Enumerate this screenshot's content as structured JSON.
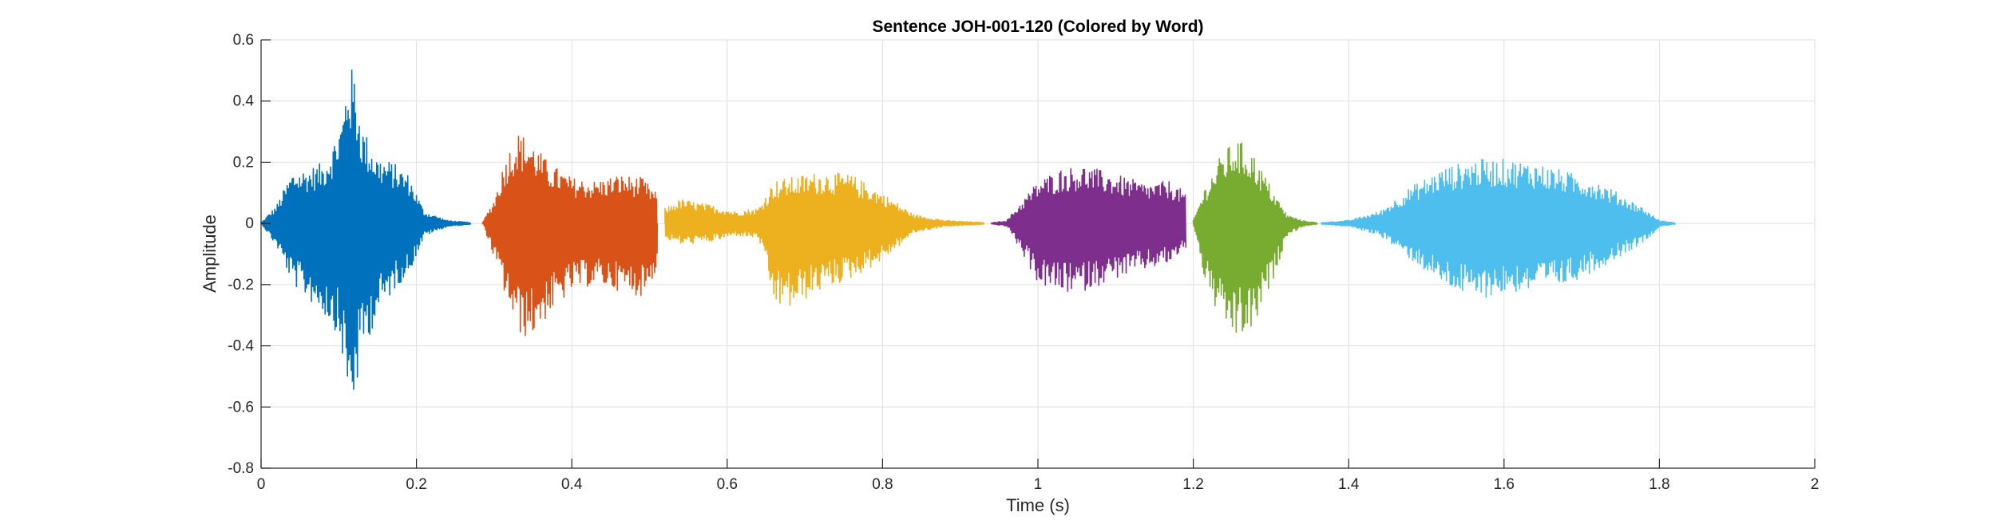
{
  "chart_data": {
    "type": "line",
    "title": "Sentence JOH-001-120 (Colored by Word)",
    "xlabel": "Time (s)",
    "ylabel": "Amplitude",
    "xlim": [
      0,
      2
    ],
    "ylim": [
      -0.8,
      0.6
    ],
    "xticks": [
      0,
      0.2,
      0.4,
      0.6,
      0.8,
      1,
      1.2,
      1.4,
      1.6,
      1.8,
      2
    ],
    "xtick_labels": [
      "0",
      "0.2",
      "0.4",
      "0.6",
      "0.8",
      "1",
      "1.2",
      "1.4",
      "1.6",
      "1.8",
      "2"
    ],
    "yticks": [
      -0.8,
      -0.6,
      -0.4,
      -0.2,
      0,
      0.2,
      0.4,
      0.6
    ],
    "ytick_labels": [
      "-0.8",
      "-0.6",
      "-0.4",
      "-0.2",
      "0",
      "0.2",
      "0.4",
      "0.6"
    ],
    "grid": true,
    "legend": "none",
    "series": [
      {
        "color": "#0072BD",
        "start": 0.0,
        "end": 0.27,
        "envelope": [
          [
            0.0,
            0.002,
            -0.002
          ],
          [
            0.02,
            0.06,
            -0.08
          ],
          [
            0.04,
            0.17,
            -0.2
          ],
          [
            0.06,
            0.18,
            -0.25
          ],
          [
            0.08,
            0.2,
            -0.3
          ],
          [
            0.095,
            0.28,
            -0.35
          ],
          [
            0.105,
            0.36,
            -0.45
          ],
          [
            0.112,
            0.52,
            -0.62
          ],
          [
            0.12,
            0.5,
            -0.58
          ],
          [
            0.13,
            0.32,
            -0.42
          ],
          [
            0.15,
            0.22,
            -0.3
          ],
          [
            0.17,
            0.2,
            -0.22
          ],
          [
            0.19,
            0.16,
            -0.16
          ],
          [
            0.21,
            0.04,
            -0.04
          ],
          [
            0.24,
            0.01,
            -0.01
          ],
          [
            0.27,
            0.003,
            -0.003
          ]
        ]
      },
      {
        "color": "#D95319",
        "start": 0.285,
        "end": 0.51,
        "envelope": [
          [
            0.285,
            0.003,
            -0.003
          ],
          [
            0.3,
            0.08,
            -0.12
          ],
          [
            0.315,
            0.22,
            -0.25
          ],
          [
            0.33,
            0.3,
            -0.36
          ],
          [
            0.345,
            0.28,
            -0.38
          ],
          [
            0.37,
            0.2,
            -0.3
          ],
          [
            0.4,
            0.15,
            -0.22
          ],
          [
            0.43,
            0.14,
            -0.2
          ],
          [
            0.46,
            0.16,
            -0.22
          ],
          [
            0.49,
            0.15,
            -0.24
          ],
          [
            0.51,
            0.1,
            -0.15
          ]
        ]
      },
      {
        "color": "#EDB120",
        "start": 0.52,
        "end": 0.93,
        "envelope": [
          [
            0.52,
            0.05,
            -0.05
          ],
          [
            0.54,
            0.08,
            -0.07
          ],
          [
            0.58,
            0.06,
            -0.06
          ],
          [
            0.61,
            0.04,
            -0.04
          ],
          [
            0.64,
            0.05,
            -0.05
          ],
          [
            0.66,
            0.14,
            -0.27
          ],
          [
            0.68,
            0.15,
            -0.28
          ],
          [
            0.72,
            0.17,
            -0.22
          ],
          [
            0.76,
            0.16,
            -0.18
          ],
          [
            0.8,
            0.1,
            -0.12
          ],
          [
            0.84,
            0.03,
            -0.03
          ],
          [
            0.88,
            0.01,
            -0.01
          ],
          [
            0.93,
            0.003,
            -0.003
          ]
        ]
      },
      {
        "color": "#7E2F8E",
        "start": 0.94,
        "end": 1.19,
        "envelope": [
          [
            0.94,
            0.002,
            -0.002
          ],
          [
            0.96,
            0.01,
            -0.01
          ],
          [
            0.975,
            0.06,
            -0.08
          ],
          [
            1.0,
            0.14,
            -0.2
          ],
          [
            1.03,
            0.18,
            -0.23
          ],
          [
            1.06,
            0.19,
            -0.22
          ],
          [
            1.1,
            0.16,
            -0.18
          ],
          [
            1.14,
            0.13,
            -0.15
          ],
          [
            1.17,
            0.14,
            -0.13
          ],
          [
            1.19,
            0.1,
            -0.08
          ]
        ]
      },
      {
        "color": "#77AC30",
        "start": 1.2,
        "end": 1.36,
        "envelope": [
          [
            1.2,
            0.01,
            -0.01
          ],
          [
            1.215,
            0.12,
            -0.2
          ],
          [
            1.235,
            0.22,
            -0.33
          ],
          [
            1.255,
            0.28,
            -0.38
          ],
          [
            1.275,
            0.24,
            -0.36
          ],
          [
            1.3,
            0.12,
            -0.2
          ],
          [
            1.32,
            0.03,
            -0.04
          ],
          [
            1.34,
            0.01,
            -0.01
          ],
          [
            1.36,
            0.002,
            -0.002
          ]
        ]
      },
      {
        "color": "#4DBEEE",
        "start": 1.365,
        "end": 1.82,
        "envelope": [
          [
            1.365,
            0.003,
            -0.003
          ],
          [
            1.4,
            0.01,
            -0.01
          ],
          [
            1.44,
            0.04,
            -0.04
          ],
          [
            1.48,
            0.12,
            -0.12
          ],
          [
            1.52,
            0.18,
            -0.2
          ],
          [
            1.56,
            0.21,
            -0.25
          ],
          [
            1.6,
            0.21,
            -0.23
          ],
          [
            1.64,
            0.2,
            -0.22
          ],
          [
            1.68,
            0.17,
            -0.2
          ],
          [
            1.72,
            0.14,
            -0.15
          ],
          [
            1.76,
            0.08,
            -0.09
          ],
          [
            1.78,
            0.05,
            -0.06
          ],
          [
            1.8,
            0.01,
            -0.01
          ],
          [
            1.82,
            0.002,
            -0.002
          ]
        ]
      }
    ]
  }
}
